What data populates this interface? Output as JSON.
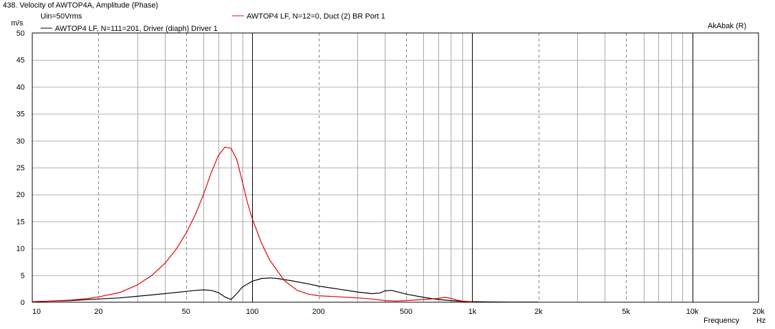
{
  "header": {
    "title": "438. Velocity of AWTOP4A, Amplitude (Phase)",
    "condition": "Uin=50Vrms",
    "brand": "AkAbak (R)"
  },
  "chart_data": {
    "type": "line",
    "title": "438. Velocity of AWTOP4A, Amplitude (Phase)",
    "xlabel": "Frequency",
    "xunit": "Hz",
    "ylabel": "m/s",
    "xscale": "log",
    "xlim": [
      10,
      20000
    ],
    "ylim": [
      0,
      50
    ],
    "grid": true,
    "legend_position": "top-left",
    "x_tick_labels": [
      {
        "value": 10,
        "label": "10"
      },
      {
        "value": 20,
        "label": "20"
      },
      {
        "value": 50,
        "label": "50"
      },
      {
        "value": 100,
        "label": "100"
      },
      {
        "value": 200,
        "label": "200"
      },
      {
        "value": 500,
        "label": "500"
      },
      {
        "value": 1000,
        "label": "1k"
      },
      {
        "value": 2000,
        "label": "2k"
      },
      {
        "value": 5000,
        "label": "5k"
      },
      {
        "value": 10000,
        "label": "10k"
      },
      {
        "value": 20000,
        "label": "20k"
      }
    ],
    "y_ticks": [
      0,
      5,
      10,
      15,
      20,
      25,
      30,
      35,
      40,
      45,
      50
    ],
    "series": [
      {
        "name": "AWTOP4 LF, N=12=0, Duct (2) BR Port 1",
        "color": "#e00000",
        "x": [
          10,
          12,
          15,
          18,
          20,
          25,
          30,
          35,
          40,
          45,
          50,
          55,
          60,
          65,
          70,
          75,
          80,
          85,
          90,
          95,
          100,
          110,
          120,
          140,
          160,
          180,
          200,
          250,
          300,
          350,
          400,
          450,
          500,
          600,
          700,
          750,
          800,
          850,
          900,
          1000
        ],
        "y": [
          0.1,
          0.2,
          0.4,
          0.7,
          1.0,
          1.8,
          3.2,
          5.0,
          7.2,
          9.8,
          12.8,
          16.2,
          20.0,
          24.0,
          27.2,
          28.8,
          28.6,
          26.5,
          22.5,
          18.5,
          15.5,
          11.0,
          7.8,
          4.0,
          2.2,
          1.5,
          1.2,
          1.0,
          0.8,
          0.6,
          0.3,
          0.2,
          0.3,
          0.5,
          0.7,
          0.9,
          0.7,
          0.4,
          0.2,
          0.1
        ]
      },
      {
        "name": "AWTOP4 LF, N=111=201, Driver (diaph) Driver 1",
        "color": "#000000",
        "x": [
          10,
          15,
          20,
          25,
          30,
          40,
          50,
          55,
          60,
          65,
          70,
          75,
          80,
          85,
          90,
          100,
          110,
          120,
          130,
          150,
          180,
          200,
          250,
          300,
          350,
          380,
          400,
          430,
          450,
          500,
          600,
          700,
          800,
          900,
          1000,
          1200,
          1500,
          2000
        ],
        "y": [
          0.1,
          0.3,
          0.6,
          0.8,
          1.1,
          1.6,
          2.0,
          2.2,
          2.3,
          2.2,
          1.8,
          1.0,
          0.5,
          1.6,
          2.8,
          3.9,
          4.4,
          4.5,
          4.4,
          4.0,
          3.4,
          3.0,
          2.4,
          1.9,
          1.6,
          1.7,
          2.1,
          2.2,
          2.0,
          1.5,
          0.9,
          0.5,
          0.3,
          0.15,
          0.1,
          0.05,
          0.02,
          0.01
        ]
      }
    ]
  }
}
